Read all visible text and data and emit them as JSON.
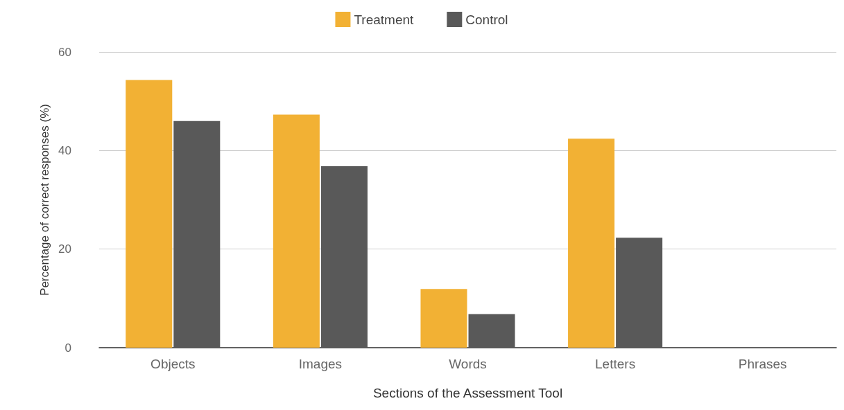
{
  "chart_data": {
    "type": "bar",
    "xlabel": "Sections of the Assessment Tool",
    "ylabel": "Percentage of correct responses (%)",
    "categories": [
      "Objects",
      "Images",
      "Words",
      "Letters",
      "Phrases"
    ],
    "series": [
      {
        "name": "Treatment",
        "color": "#f2b134",
        "values": [
          54.3,
          47.3,
          11.9,
          42.4,
          0
        ]
      },
      {
        "name": "Control",
        "color": "#595959",
        "values": [
          46.0,
          36.8,
          6.8,
          22.3,
          0
        ]
      }
    ],
    "ylim": [
      0,
      60
    ],
    "yticks": [
      0,
      20,
      40,
      60
    ],
    "grid": "y",
    "legend": "top"
  }
}
